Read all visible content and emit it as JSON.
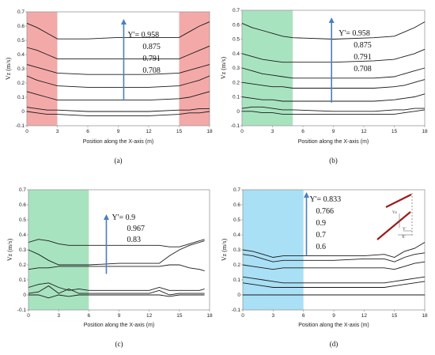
{
  "chart_data": [
    {
      "panel": "(a)",
      "type": "line",
      "xlabel": "Position along the X-axis (m)",
      "ylabel": "Vz (m/s)",
      "xlim": [
        0,
        18
      ],
      "ylim": [
        -0.1,
        0.7
      ],
      "xticks": [
        0,
        3,
        6,
        9,
        12,
        15,
        18
      ],
      "yticks": [
        -0.1,
        0,
        0.1,
        0.2,
        0.3,
        0.4,
        0.5,
        0.6,
        0.7
      ],
      "shade": [
        {
          "x0": 0,
          "x1": 3,
          "color": "#f4a9a9"
        },
        {
          "x0": 15,
          "x1": 18,
          "color": "#f4a9a9"
        }
      ],
      "legend_lines": [
        "Y'= 0.958",
        "0.875",
        "0.791",
        "0.708"
      ],
      "series": [
        {
          "x": [
            0,
            1,
            2,
            3,
            6,
            9,
            12,
            15,
            16,
            17,
            18
          ],
          "y": [
            0.62,
            0.59,
            0.55,
            0.51,
            0.51,
            0.52,
            0.52,
            0.52,
            0.56,
            0.6,
            0.63
          ]
        },
        {
          "x": [
            0,
            1,
            2,
            3,
            6,
            9,
            12,
            15,
            16,
            17,
            18
          ],
          "y": [
            0.45,
            0.43,
            0.4,
            0.37,
            0.37,
            0.37,
            0.37,
            0.37,
            0.4,
            0.43,
            0.46
          ]
        },
        {
          "x": [
            0,
            1,
            2,
            3,
            6,
            9,
            12,
            15,
            16,
            17,
            18
          ],
          "y": [
            0.33,
            0.31,
            0.29,
            0.27,
            0.26,
            0.26,
            0.26,
            0.27,
            0.29,
            0.31,
            0.33
          ]
        },
        {
          "x": [
            0,
            1,
            2,
            3,
            6,
            9,
            12,
            15,
            16,
            17,
            18
          ],
          "y": [
            0.25,
            0.22,
            0.2,
            0.18,
            0.17,
            0.17,
            0.17,
            0.18,
            0.2,
            0.22,
            0.25
          ]
        },
        {
          "x": [
            0,
            1,
            2,
            3,
            6,
            9,
            12,
            15,
            16,
            17,
            18
          ],
          "y": [
            0.14,
            0.12,
            0.1,
            0.08,
            0.08,
            0.08,
            0.08,
            0.09,
            0.1,
            0.12,
            0.14
          ]
        },
        {
          "x": [
            0,
            1,
            2,
            3,
            6,
            9,
            12,
            15,
            16,
            17,
            18
          ],
          "y": [
            0.03,
            0.02,
            0.01,
            0.01,
            0.0,
            0.0,
            0.0,
            0.01,
            0.01,
            0.02,
            0.02
          ]
        },
        {
          "x": [
            0,
            1,
            2,
            3,
            6,
            9,
            12,
            15,
            16,
            17,
            18
          ],
          "y": [
            0.0,
            -0.01,
            -0.02,
            -0.02,
            -0.03,
            -0.03,
            -0.03,
            -0.02,
            -0.01,
            -0.01,
            0.0
          ]
        }
      ]
    },
    {
      "panel": "(b)",
      "type": "line",
      "xlabel": "Position along the X-axis (m)",
      "ylabel": "Vz (m/s)",
      "xlim": [
        0,
        18
      ],
      "ylim": [
        -0.1,
        0.7
      ],
      "xticks": [
        0,
        3,
        6,
        9,
        12,
        15,
        18
      ],
      "yticks": [
        -0.1,
        0,
        0.1,
        0.2,
        0.3,
        0.4,
        0.5,
        0.6,
        0.7
      ],
      "shade": [
        {
          "x0": 0,
          "x1": 5,
          "color": "#a8e3c0"
        }
      ],
      "legend_lines": [
        "Y'= 0.958",
        "0.875",
        "0.791",
        "0.708"
      ],
      "series": [
        {
          "x": [
            0,
            1,
            2,
            3,
            4,
            5,
            9,
            13,
            15,
            16,
            17,
            18
          ],
          "y": [
            0.61,
            0.58,
            0.56,
            0.54,
            0.52,
            0.51,
            0.5,
            0.51,
            0.52,
            0.55,
            0.58,
            0.62
          ]
        },
        {
          "x": [
            0,
            1,
            2,
            3,
            4,
            5,
            9,
            13,
            15,
            16,
            17,
            18
          ],
          "y": [
            0.4,
            0.38,
            0.36,
            0.35,
            0.34,
            0.34,
            0.34,
            0.35,
            0.36,
            0.38,
            0.4,
            0.43
          ]
        },
        {
          "x": [
            0,
            1,
            2,
            3,
            4,
            5,
            9,
            13,
            15,
            16,
            17,
            18
          ],
          "y": [
            0.3,
            0.28,
            0.26,
            0.25,
            0.24,
            0.23,
            0.23,
            0.23,
            0.24,
            0.26,
            0.28,
            0.3
          ]
        },
        {
          "x": [
            0,
            1,
            2,
            3,
            4,
            5,
            9,
            13,
            15,
            16,
            17,
            18
          ],
          "y": [
            0.2,
            0.19,
            0.18,
            0.17,
            0.17,
            0.16,
            0.16,
            0.16,
            0.17,
            0.18,
            0.2,
            0.22
          ]
        },
        {
          "x": [
            0,
            1,
            2,
            3,
            4,
            5,
            9,
            13,
            15,
            16,
            17,
            18
          ],
          "y": [
            0.1,
            0.09,
            0.08,
            0.08,
            0.07,
            0.07,
            0.07,
            0.07,
            0.08,
            0.09,
            0.1,
            0.12
          ]
        },
        {
          "x": [
            0,
            1,
            2,
            3,
            4,
            5,
            9,
            13,
            15,
            16,
            17,
            18
          ],
          "y": [
            0.02,
            0.03,
            0.03,
            0.02,
            0.01,
            0.01,
            0.0,
            0.0,
            0.01,
            0.01,
            0.02,
            0.02
          ]
        },
        {
          "x": [
            0,
            1,
            2,
            3,
            4,
            5,
            9,
            13,
            15,
            16,
            17,
            18
          ],
          "y": [
            0.0,
            0.0,
            -0.01,
            -0.01,
            -0.02,
            -0.02,
            -0.02,
            -0.02,
            -0.02,
            -0.01,
            0.0,
            0.01
          ]
        }
      ]
    },
    {
      "panel": "(c)",
      "type": "line",
      "xlabel": "Position along the X-axis (m)",
      "ylabel": "Vz (m/s)",
      "xlim": [
        0,
        18
      ],
      "ylim": [
        -0.1,
        0.7
      ],
      "xticks": [
        0,
        3,
        6,
        9,
        12,
        15,
        18
      ],
      "yticks": [
        -0.1,
        0,
        0.1,
        0.2,
        0.3,
        0.4,
        0.5,
        0.6,
        0.7
      ],
      "shade": [
        {
          "x0": 0,
          "x1": 6,
          "color": "#a8e3c0"
        }
      ],
      "legend_lines": [
        "Y'= 0.9",
        "0.967",
        "0.83"
      ],
      "series": [
        {
          "x": [
            0,
            1,
            2,
            3,
            4,
            5,
            6,
            9,
            12,
            13,
            14,
            15,
            16,
            17,
            17.5
          ],
          "y": [
            0.35,
            0.37,
            0.36,
            0.34,
            0.33,
            0.33,
            0.33,
            0.33,
            0.33,
            0.33,
            0.32,
            0.32,
            0.34,
            0.36,
            0.37
          ]
        },
        {
          "x": [
            0,
            1,
            2,
            3,
            4,
            5,
            6,
            9,
            12,
            13,
            14,
            15,
            16,
            17,
            17.5
          ],
          "y": [
            0.3,
            0.27,
            0.23,
            0.2,
            0.2,
            0.2,
            0.2,
            0.21,
            0.21,
            0.21,
            0.26,
            0.3,
            0.33,
            0.35,
            0.36
          ]
        },
        {
          "x": [
            0,
            1,
            2,
            3,
            4,
            5,
            6,
            9,
            12,
            13,
            14,
            15,
            16,
            17,
            17.5
          ],
          "y": [
            0.17,
            0.18,
            0.18,
            0.19,
            0.19,
            0.19,
            0.19,
            0.19,
            0.19,
            0.19,
            0.2,
            0.2,
            0.18,
            0.17,
            0.16
          ]
        },
        {
          "x": [
            0,
            1,
            2,
            3,
            4,
            5,
            6,
            9,
            12,
            13,
            14,
            15,
            16,
            17,
            17.5
          ],
          "y": [
            0.05,
            0.07,
            0.08,
            0.05,
            0.03,
            0.04,
            0.03,
            0.03,
            0.03,
            0.05,
            0.03,
            0.03,
            0.03,
            0.03,
            0.04
          ]
        },
        {
          "x": [
            0,
            1,
            2,
            3,
            4,
            5,
            6,
            9,
            12,
            13,
            14,
            15,
            16,
            17,
            17.5
          ],
          "y": [
            0.01,
            0.02,
            0.06,
            0.01,
            0.04,
            0.01,
            0.01,
            0.01,
            0.01,
            0.03,
            0.0,
            0.01,
            0.01,
            0.01,
            0.01
          ]
        },
        {
          "x": [
            0,
            1,
            2,
            3,
            4,
            5,
            6,
            9,
            12,
            13,
            14,
            15,
            16,
            17,
            17.5
          ],
          "y": [
            0.0,
            0.0,
            -0.02,
            0.0,
            -0.01,
            0.0,
            0.0,
            0.0,
            0.0,
            0.0,
            -0.01,
            0.0,
            0.0,
            0.0,
            0.0
          ]
        }
      ]
    },
    {
      "panel": "(d)",
      "type": "line",
      "xlabel": "Position along the X-axis (m)",
      "ylabel": "Vz (m/s)",
      "xlim": [
        0,
        18
      ],
      "ylim": [
        -0.1,
        0.7
      ],
      "xticks": [
        0,
        3,
        6,
        9,
        12,
        15,
        18
      ],
      "yticks": [
        -0.1,
        0,
        0.1,
        0.2,
        0.3,
        0.4,
        0.5,
        0.6,
        0.7
      ],
      "shade": [
        {
          "x0": 0,
          "x1": 6,
          "color": "#a9e0f5"
        }
      ],
      "legend_lines": [
        "Y'= 0.833",
        "0.766",
        "0.9",
        "0.7",
        "0.6"
      ],
      "inset_labels": [
        "Vz",
        "Y'",
        "X'"
      ],
      "series": [
        {
          "x": [
            0,
            1,
            2,
            3,
            4,
            6,
            9,
            12,
            14,
            15,
            16,
            17,
            18
          ],
          "y": [
            0.3,
            0.29,
            0.27,
            0.25,
            0.26,
            0.26,
            0.26,
            0.26,
            0.27,
            0.25,
            0.29,
            0.31,
            0.35
          ]
        },
        {
          "x": [
            0,
            1,
            2,
            3,
            4,
            6,
            9,
            12,
            14,
            15,
            16,
            17,
            18
          ],
          "y": [
            0.27,
            0.26,
            0.24,
            0.22,
            0.23,
            0.23,
            0.23,
            0.24,
            0.24,
            0.22,
            0.25,
            0.27,
            0.28
          ]
        },
        {
          "x": [
            0,
            1,
            2,
            3,
            4,
            6,
            9,
            12,
            14,
            15,
            16,
            17,
            18
          ],
          "y": [
            0.2,
            0.19,
            0.18,
            0.17,
            0.18,
            0.18,
            0.18,
            0.18,
            0.18,
            0.17,
            0.19,
            0.21,
            0.22
          ]
        },
        {
          "x": [
            0,
            1,
            2,
            3,
            4,
            6,
            9,
            12,
            14,
            15,
            16,
            17,
            18
          ],
          "y": [
            0.12,
            0.11,
            0.1,
            0.09,
            0.08,
            0.08,
            0.08,
            0.08,
            0.08,
            0.09,
            0.1,
            0.11,
            0.12
          ]
        },
        {
          "x": [
            0,
            1,
            2,
            3,
            4,
            6,
            9,
            12,
            14,
            15,
            16,
            17,
            18
          ],
          "y": [
            0.08,
            0.07,
            0.06,
            0.05,
            0.05,
            0.05,
            0.05,
            0.05,
            0.05,
            0.06,
            0.07,
            0.08,
            0.09
          ]
        },
        {
          "x": [
            0,
            1,
            2,
            3,
            4,
            6,
            9,
            12,
            14,
            15,
            16,
            17,
            18
          ],
          "y": [
            0.0,
            0.0,
            0.0,
            0.0,
            0.0,
            0.0,
            0.0,
            0.0,
            0.0,
            0.0,
            0.0,
            0.0,
            0.0
          ]
        }
      ]
    }
  ],
  "colors": {
    "line": "#1a1a1a",
    "arrow": "#4a7fc1",
    "inset_bar": "#9b1b1b"
  }
}
